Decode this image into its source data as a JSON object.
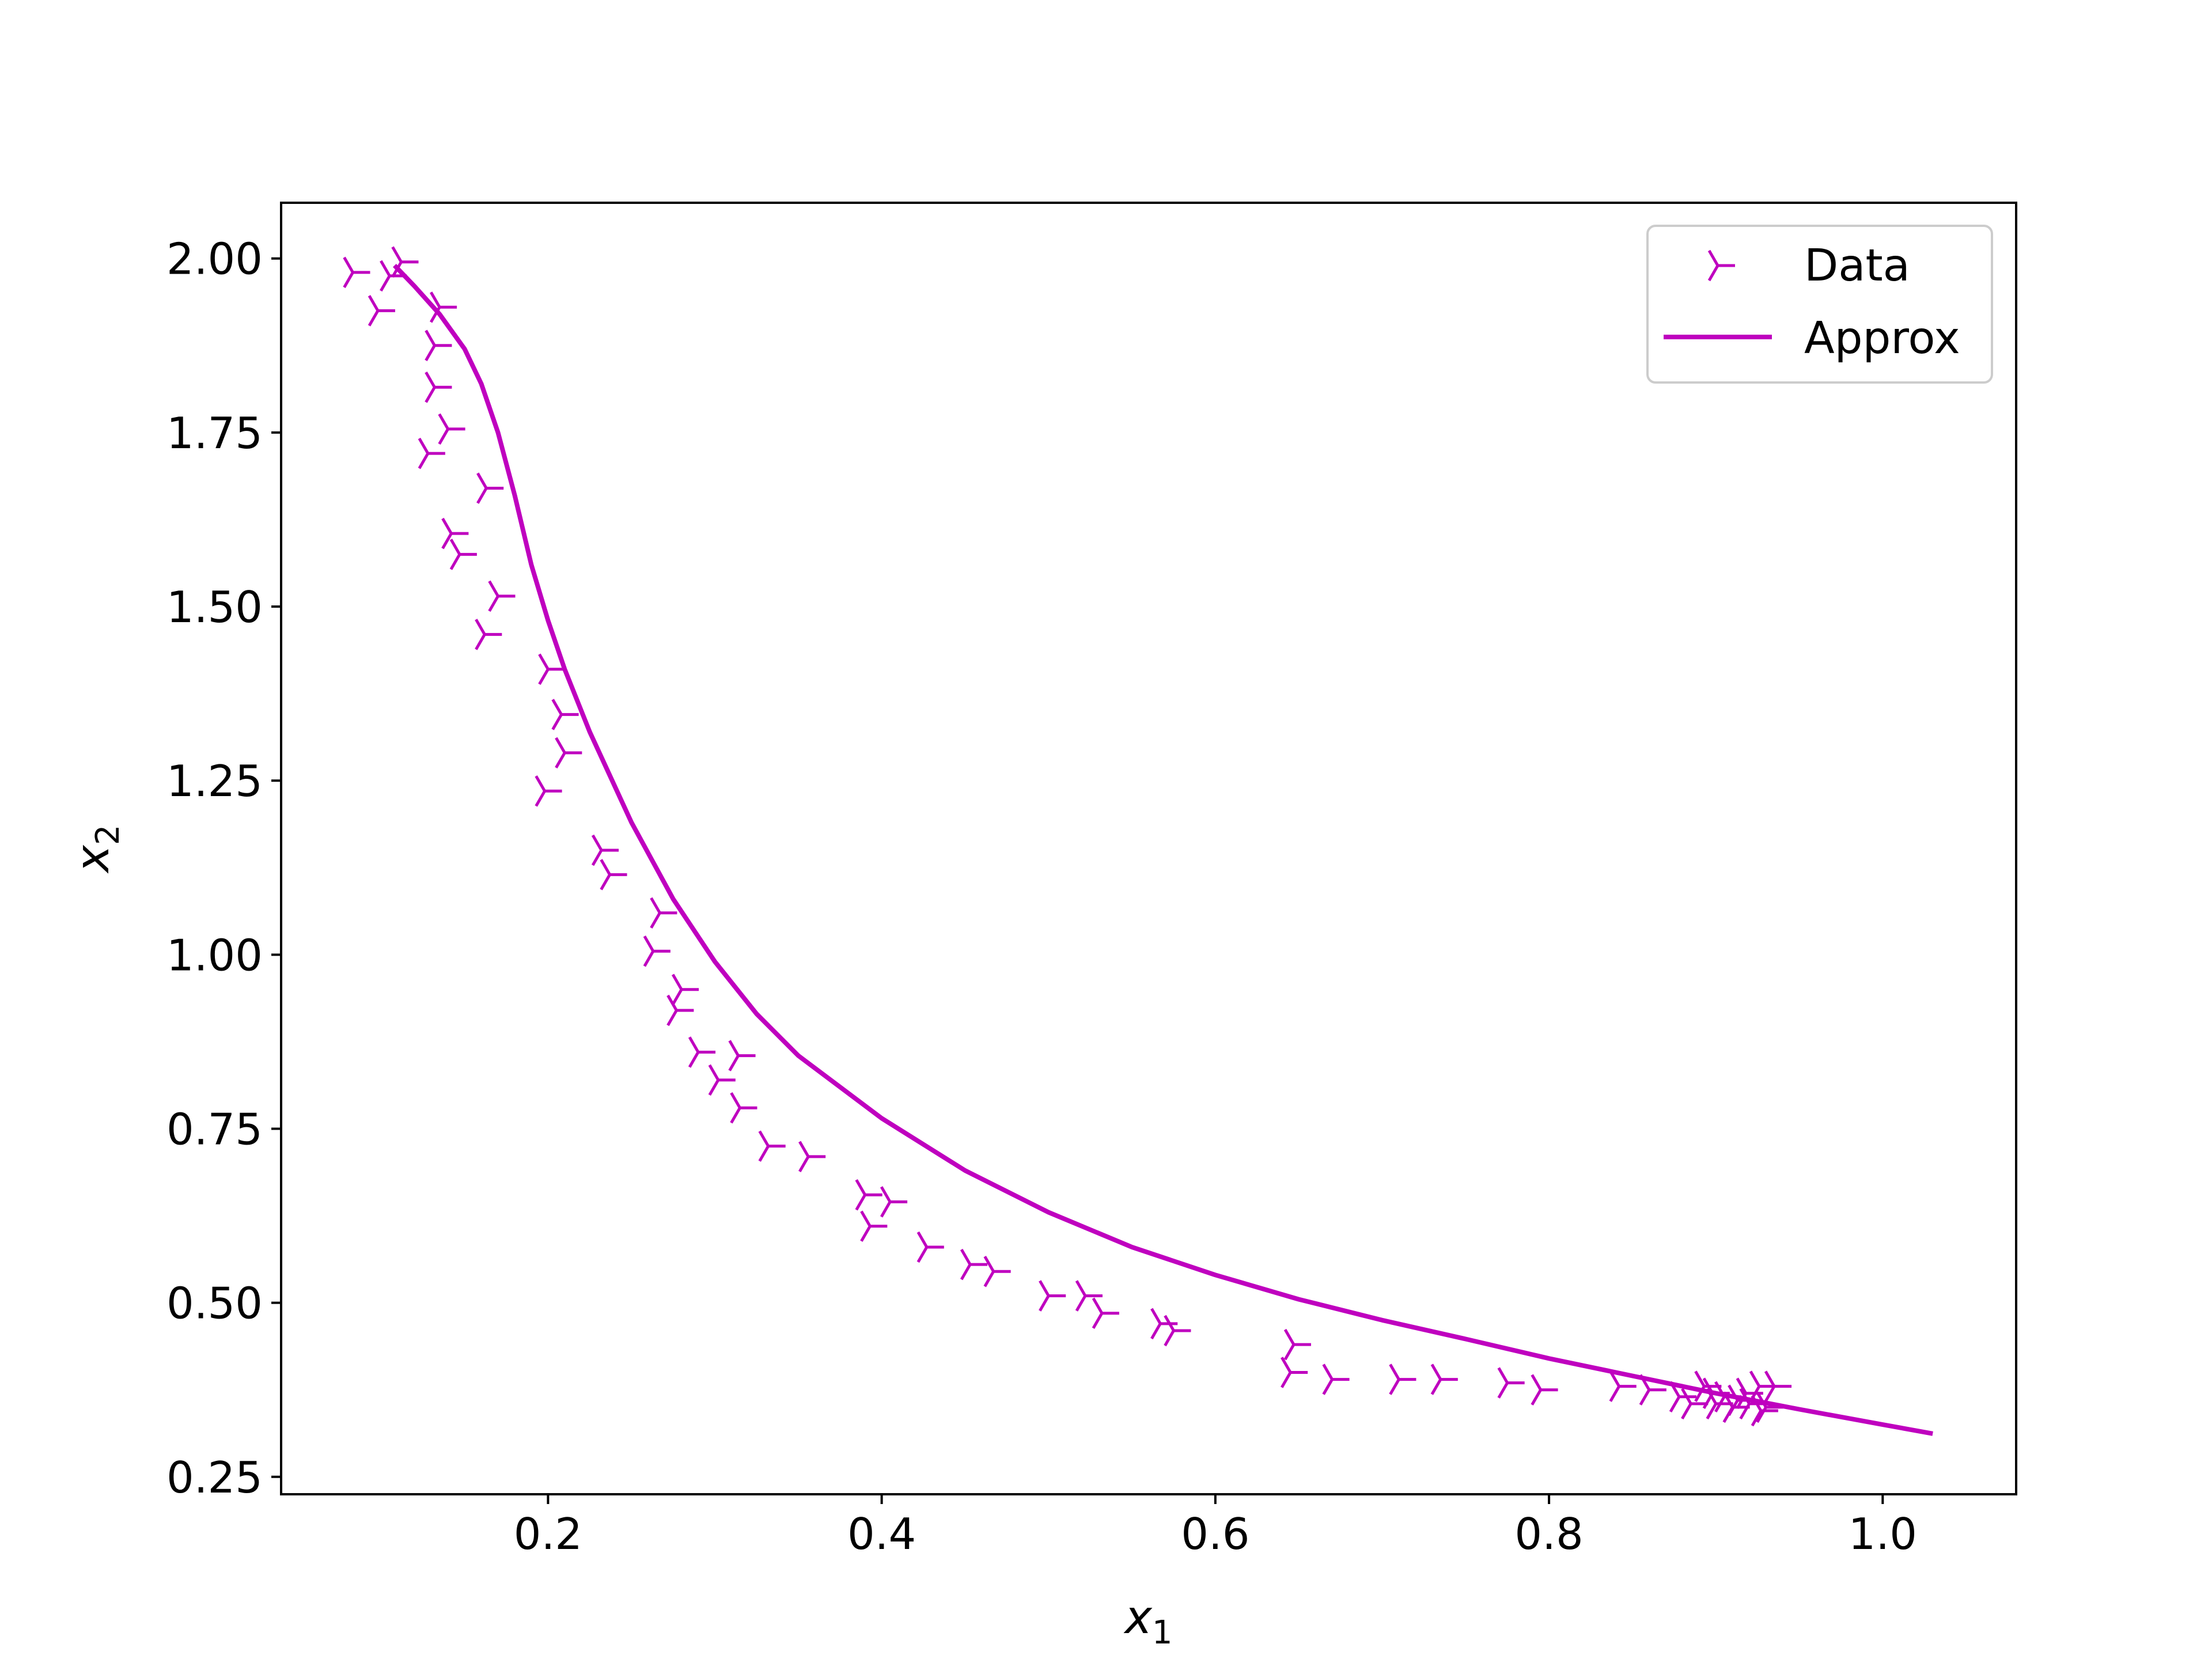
{
  "chart_data": {
    "type": "scatter",
    "title": "",
    "xlabel": "x",
    "xlabel_subscript": "1",
    "ylabel": "x",
    "ylabel_subscript": "2",
    "xlim": [
      0.04,
      1.08
    ],
    "ylim": [
      0.225,
      2.08
    ],
    "x_ticks": [
      0.2,
      0.4,
      0.6,
      0.8,
      1.0
    ],
    "x_tick_labels": [
      "0.2",
      "0.4",
      "0.6",
      "0.8",
      "1.0"
    ],
    "y_ticks": [
      0.25,
      0.5,
      0.75,
      1.0,
      1.25,
      1.5,
      1.75,
      2.0
    ],
    "y_tick_labels": [
      "0.25",
      "0.50",
      "0.75",
      "1.00",
      "1.25",
      "1.50",
      "1.75",
      "2.00"
    ],
    "grid": false,
    "legend_position": "top-right",
    "color": "#bf00bf",
    "series": [
      {
        "name": "Data",
        "kind": "marker",
        "marker": "tri-right",
        "points": [
          [
            0.083,
            1.98
          ],
          [
            0.112,
            1.995
          ],
          [
            0.105,
            1.975
          ],
          [
            0.098,
            1.925
          ],
          [
            0.135,
            1.93
          ],
          [
            0.132,
            1.875
          ],
          [
            0.132,
            1.815
          ],
          [
            0.14,
            1.755
          ],
          [
            0.128,
            1.72
          ],
          [
            0.163,
            1.67
          ],
          [
            0.142,
            1.605
          ],
          [
            0.147,
            1.575
          ],
          [
            0.17,
            1.515
          ],
          [
            0.162,
            1.46
          ],
          [
            0.2,
            1.41
          ],
          [
            0.208,
            1.345
          ],
          [
            0.21,
            1.29
          ],
          [
            0.198,
            1.235
          ],
          [
            0.232,
            1.15
          ],
          [
            0.237,
            1.115
          ],
          [
            0.267,
            1.06
          ],
          [
            0.263,
            1.005
          ],
          [
            0.28,
            0.95
          ],
          [
            0.277,
            0.92
          ],
          [
            0.29,
            0.86
          ],
          [
            0.314,
            0.855
          ],
          [
            0.302,
            0.82
          ],
          [
            0.315,
            0.78
          ],
          [
            0.332,
            0.725
          ],
          [
            0.356,
            0.71
          ],
          [
            0.39,
            0.655
          ],
          [
            0.405,
            0.645
          ],
          [
            0.393,
            0.61
          ],
          [
            0.427,
            0.58
          ],
          [
            0.453,
            0.555
          ],
          [
            0.467,
            0.545
          ],
          [
            0.5,
            0.51
          ],
          [
            0.522,
            0.51
          ],
          [
            0.532,
            0.485
          ],
          [
            0.567,
            0.47
          ],
          [
            0.575,
            0.46
          ],
          [
            0.647,
            0.44
          ],
          [
            0.645,
            0.4
          ],
          [
            0.67,
            0.39
          ],
          [
            0.71,
            0.39
          ],
          [
            0.735,
            0.39
          ],
          [
            0.775,
            0.385
          ],
          [
            0.795,
            0.375
          ],
          [
            0.842,
            0.38
          ],
          [
            0.86,
            0.375
          ],
          [
            0.878,
            0.365
          ],
          [
            0.885,
            0.355
          ],
          [
            0.893,
            0.38
          ],
          [
            0.898,
            0.37
          ],
          [
            0.9,
            0.355
          ],
          [
            0.905,
            0.365
          ],
          [
            0.91,
            0.35
          ],
          [
            0.913,
            0.36
          ],
          [
            0.918,
            0.37
          ],
          [
            0.92,
            0.355
          ],
          [
            0.926,
            0.38
          ],
          [
            0.93,
            0.35
          ],
          [
            0.935,
            0.38
          ],
          [
            0.927,
            0.345
          ]
        ]
      },
      {
        "name": "Approx",
        "kind": "line",
        "points": [
          [
            0.108,
            1.99
          ],
          [
            0.12,
            1.96
          ],
          [
            0.135,
            1.92
          ],
          [
            0.15,
            1.87
          ],
          [
            0.16,
            1.82
          ],
          [
            0.17,
            1.75
          ],
          [
            0.18,
            1.66
          ],
          [
            0.19,
            1.56
          ],
          [
            0.2,
            1.48
          ],
          [
            0.21,
            1.41
          ],
          [
            0.225,
            1.32
          ],
          [
            0.25,
            1.19
          ],
          [
            0.275,
            1.08
          ],
          [
            0.3,
            0.99
          ],
          [
            0.325,
            0.915
          ],
          [
            0.35,
            0.855
          ],
          [
            0.4,
            0.765
          ],
          [
            0.45,
            0.69
          ],
          [
            0.5,
            0.63
          ],
          [
            0.55,
            0.58
          ],
          [
            0.6,
            0.54
          ],
          [
            0.65,
            0.505
          ],
          [
            0.7,
            0.475
          ],
          [
            0.75,
            0.448
          ],
          [
            0.8,
            0.42
          ],
          [
            0.85,
            0.395
          ],
          [
            0.9,
            0.37
          ],
          [
            0.95,
            0.347
          ],
          [
            1.0,
            0.325
          ],
          [
            1.03,
            0.312
          ]
        ]
      }
    ]
  }
}
